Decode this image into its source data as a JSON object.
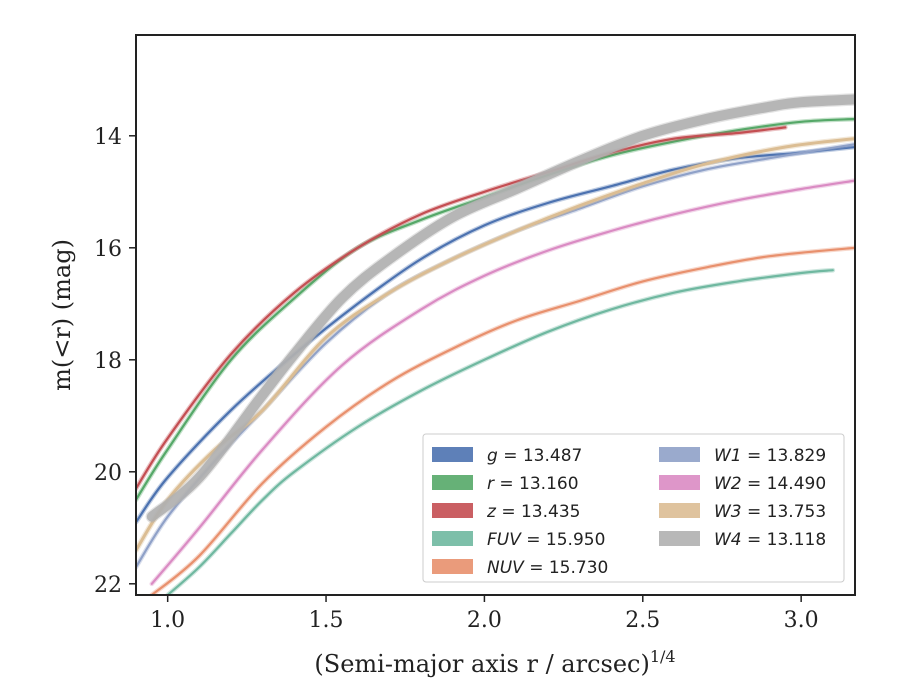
{
  "chart_data": {
    "type": "line",
    "xlabel": "(Semi-major axis r / arcsec)",
    "xlabel_sup": "1/4",
    "ylabel": "m(<r) (mag)",
    "xlim": [
      0.9,
      3.17
    ],
    "ylim": [
      22.2,
      12.2
    ],
    "y_inverted": true,
    "xticks": [
      1.0,
      1.5,
      2.0,
      2.5,
      3.0
    ],
    "xtick_labels": [
      "1.0",
      "1.5",
      "2.0",
      "2.5",
      "3.0"
    ],
    "yticks": [
      14,
      16,
      18,
      20,
      22
    ],
    "ytick_labels": [
      "14",
      "16",
      "18",
      "20",
      "22"
    ],
    "grid": false,
    "legend_position": "lower-right",
    "series": [
      {
        "name": "g = 13.487",
        "band": "g",
        "value": "13.487",
        "color": "#4c72b0",
        "label_italic": true,
        "x": [
          0.9,
          1.0,
          1.2,
          1.4,
          1.6,
          1.8,
          2.0,
          2.2,
          2.4,
          2.6,
          2.8,
          3.0,
          3.17
        ],
        "y": [
          20.9,
          20.1,
          18.9,
          17.9,
          17.0,
          16.2,
          15.6,
          15.2,
          14.9,
          14.6,
          14.4,
          14.3,
          14.2
        ]
      },
      {
        "name": "r = 13.160",
        "band": "r",
        "value": "13.160",
        "color": "#55a868",
        "label_italic": true,
        "x": [
          0.9,
          1.0,
          1.2,
          1.4,
          1.6,
          1.8,
          2.0,
          2.2,
          2.4,
          2.6,
          2.8,
          3.0,
          3.17
        ],
        "y": [
          20.5,
          19.6,
          18.0,
          16.9,
          16.0,
          15.5,
          15.1,
          14.7,
          14.35,
          14.1,
          13.9,
          13.75,
          13.7
        ]
      },
      {
        "name": "z = 13.435",
        "band": "z",
        "value": "13.435",
        "color": "#c44e52",
        "label_italic": true,
        "x": [
          0.9,
          1.0,
          1.2,
          1.4,
          1.6,
          1.8,
          2.0,
          2.2,
          2.4,
          2.6,
          2.8,
          2.95
        ],
        "y": [
          20.3,
          19.4,
          17.9,
          16.8,
          16.0,
          15.4,
          15.0,
          14.65,
          14.3,
          14.05,
          13.95,
          13.85
        ]
      },
      {
        "name": "FUV = 15.950",
        "band": "FUV",
        "value": "15.950",
        "color": "#6fb8a0",
        "label_italic": true,
        "x": [
          1.0,
          1.1,
          1.2,
          1.3,
          1.4,
          1.6,
          1.8,
          2.0,
          2.2,
          2.4,
          2.6,
          2.8,
          3.0,
          3.1
        ],
        "y": [
          22.2,
          21.7,
          21.1,
          20.5,
          20.0,
          19.2,
          18.55,
          18.0,
          17.5,
          17.1,
          16.8,
          16.6,
          16.45,
          16.4
        ]
      },
      {
        "name": "NUV = 15.730",
        "band": "NUV",
        "value": "15.730",
        "color": "#e8906d",
        "label_italic": true,
        "x": [
          0.95,
          1.1,
          1.3,
          1.5,
          1.7,
          1.9,
          2.1,
          2.3,
          2.5,
          2.7,
          2.9,
          3.17
        ],
        "y": [
          22.2,
          21.5,
          20.2,
          19.2,
          18.4,
          17.8,
          17.3,
          16.95,
          16.6,
          16.35,
          16.15,
          16.0
        ]
      },
      {
        "name": "W1 = 13.829",
        "band": "W1",
        "value": "13.829",
        "color": "#8fa1c8",
        "label_italic": true,
        "x": [
          0.9,
          1.0,
          1.15,
          1.3,
          1.5,
          1.7,
          1.9,
          2.1,
          2.3,
          2.5,
          2.7,
          2.9,
          3.17
        ],
        "y": [
          21.7,
          20.8,
          19.8,
          18.9,
          17.7,
          16.8,
          16.2,
          15.7,
          15.3,
          14.9,
          14.6,
          14.4,
          14.15
        ]
      },
      {
        "name": "W2 = 14.490",
        "band": "W2",
        "value": "14.490",
        "color": "#da8bc3",
        "label_italic": true,
        "x": [
          0.95,
          1.1,
          1.3,
          1.55,
          1.8,
          2.0,
          2.2,
          2.4,
          2.6,
          2.8,
          3.0,
          3.17
        ],
        "y": [
          22.0,
          21.0,
          19.6,
          18.1,
          17.1,
          16.5,
          16.05,
          15.7,
          15.4,
          15.15,
          14.95,
          14.8
        ]
      },
      {
        "name": "W3 = 13.753",
        "band": "W3",
        "value": "13.753",
        "color": "#dbbd93",
        "label_italic": true,
        "x": [
          0.9,
          1.0,
          1.15,
          1.3,
          1.5,
          1.7,
          1.9,
          2.1,
          2.3,
          2.5,
          2.7,
          2.95,
          3.17
        ],
        "y": [
          21.4,
          20.5,
          19.6,
          18.9,
          17.6,
          16.8,
          16.2,
          15.7,
          15.25,
          14.85,
          14.5,
          14.2,
          14.05
        ]
      },
      {
        "name": "W4 = 13.118",
        "band": "W4",
        "value": "13.118",
        "color": "#b0b0b0",
        "label_italic": true,
        "x": [
          0.95,
          1.1,
          1.29,
          1.4,
          1.55,
          1.7,
          1.9,
          2.1,
          2.3,
          2.5,
          2.7,
          2.9,
          3.0,
          3.17
        ],
        "y": [
          20.8,
          20.1,
          18.7,
          17.9,
          16.9,
          16.2,
          15.45,
          14.95,
          14.45,
          14.0,
          13.7,
          13.48,
          13.4,
          13.35
        ]
      }
    ]
  }
}
